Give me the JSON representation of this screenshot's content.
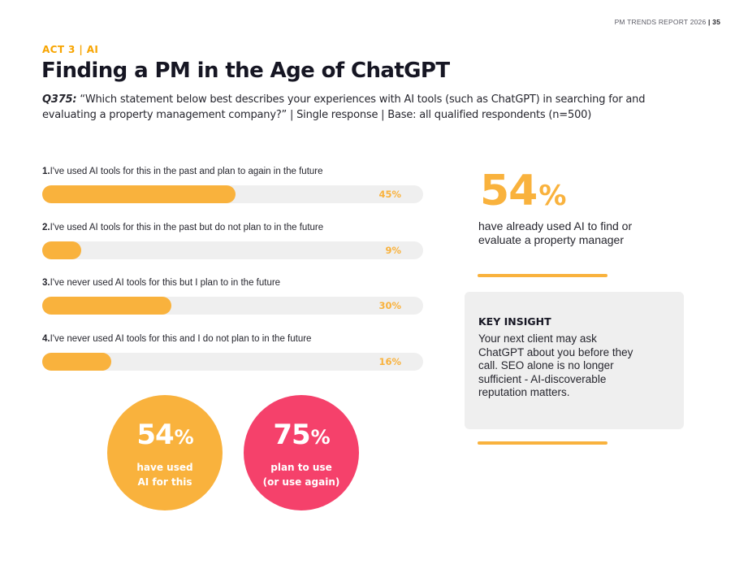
{
  "header": {
    "report": "PM TRENDS REPORT 2026",
    "separator": "|",
    "page": "35"
  },
  "act": {
    "label": "ACT 3  |  AI"
  },
  "title": "Finding a PM in the Age of ChatGPT",
  "question": {
    "id": "Q375:",
    "text": "“Which statement below best describes your experiences with AI tools (such as ChatGPT) in searching for and evaluating a property management company?” | Single response | Base: all qualified respondents (n=500)"
  },
  "chart_data": {
    "type": "bar",
    "orientation": "horizontal",
    "categories": [
      "I've used AI tools for this in the past and plan to again in the future",
      "I've used AI tools for this in the past but do not plan to in the future",
      "I've never used AI tools for this but I plan to in the future",
      "I've never used AI tools for this and I do not plan to in the future"
    ],
    "values": [
      45,
      9,
      30,
      16
    ],
    "value_labels": [
      "45%",
      "9%",
      "30%",
      "16%"
    ],
    "xlim": [
      0,
      100
    ],
    "bar_color": "#f9b23d",
    "track_color": "#efefef"
  },
  "bars": [
    {
      "num": "1.",
      "label": "I've used AI tools for this in the past and plan to again in the future",
      "pct": "45%"
    },
    {
      "num": "2.",
      "label": "I've used AI tools for this in the past but do not plan to in the future",
      "pct": "9%"
    },
    {
      "num": "3.",
      "label": "I've never used AI tools for this but I plan to in the future",
      "pct": "30%"
    },
    {
      "num": "4.",
      "label": "I've never used AI tools for this and I do not plan to in the future",
      "pct": "16%"
    }
  ],
  "stat": {
    "value": "54",
    "unit": "%",
    "description": "have already used AI to find or evaluate a property manager"
  },
  "insight": {
    "title": "KEY INSIGHT",
    "body": "Your next client may ask ChatGPT about you before they call. SEO alone is no longer sufficient - AI-discoverable reputation matters."
  },
  "circles": [
    {
      "value": "54",
      "unit": "%",
      "line1": "have used",
      "line2": "AI for this",
      "color": "#f9b23d"
    },
    {
      "value": "75",
      "unit": "%",
      "line1": "plan to use",
      "line2": "(or use again)",
      "color": "#f5416b"
    }
  ],
  "colors": {
    "accent": "#f9b23d",
    "act": "#f7a400",
    "pink": "#f5416b",
    "panel": "#efefef"
  }
}
